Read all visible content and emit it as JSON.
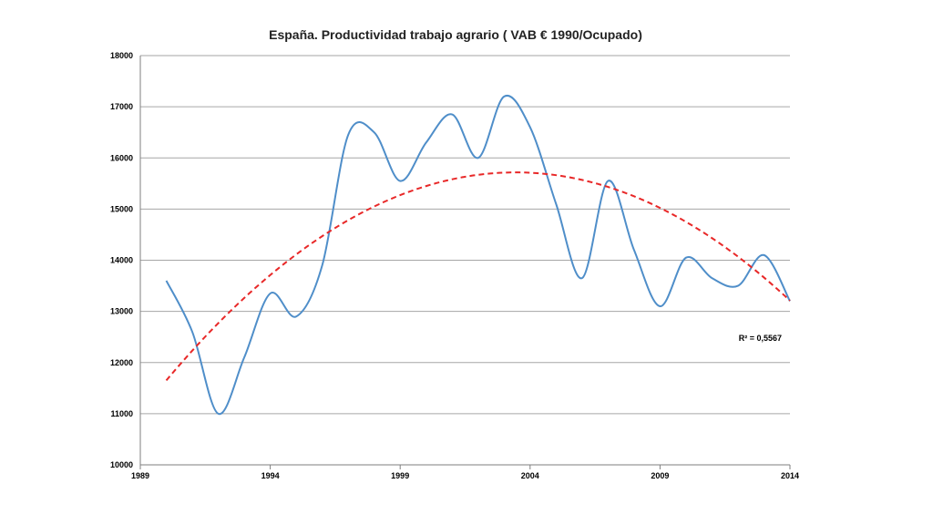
{
  "chart_data": {
    "type": "line",
    "title": "España.  Productividad trabajo agrario ( VAB € 1990/Ocupado)",
    "xlabel": "",
    "ylabel": "",
    "xlim": [
      1989,
      2014
    ],
    "ylim": [
      10000,
      18000
    ],
    "x_ticks": [
      1989,
      1994,
      1999,
      2004,
      2009,
      2014
    ],
    "y_ticks": [
      10000,
      11000,
      12000,
      13000,
      14000,
      15000,
      16000,
      17000,
      18000
    ],
    "grid": "horizontal",
    "series": [
      {
        "values_x": [
          1990,
          1991,
          1992,
          1993,
          1994,
          1995,
          1996,
          1997,
          1998,
          1999,
          2000,
          2001,
          2002,
          2003,
          2004,
          2005,
          2006,
          2007,
          2008,
          2009,
          2010,
          2011,
          2012,
          2013,
          2014
        ],
        "values": [
          13600,
          12600,
          11000,
          12100,
          13350,
          12900,
          13900,
          16450,
          16500,
          15550,
          16300,
          16850,
          16000,
          17200,
          16600,
          15100,
          13650,
          15550,
          14200,
          13100,
          14050,
          13650,
          13500,
          14100,
          13200
        ],
        "color": "#4f8ec9",
        "style": "smooth"
      }
    ],
    "trendline": {
      "kind": "polynomial-2",
      "coefficients": {
        "a": 11650,
        "b": 605,
        "c": -22.5
      },
      "x_origin": 1990,
      "x_range": [
        1990,
        2014
      ],
      "color": "#e82828",
      "style": "dashed",
      "r2_label": "R² = 0,5567"
    }
  }
}
